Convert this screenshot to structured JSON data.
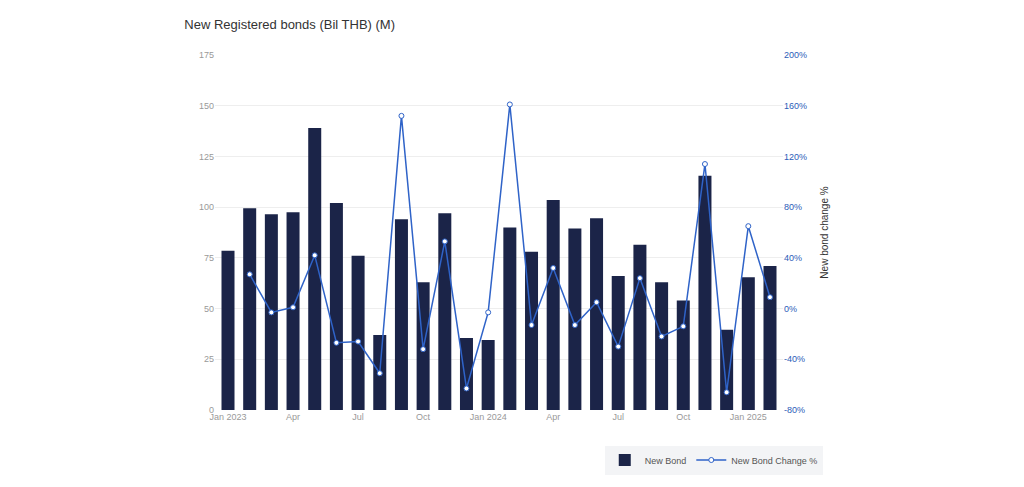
{
  "chart_data": {
    "type": "bar",
    "title": "New Registered bonds (Bil THB) (M)",
    "categories": [
      "Jan 2023",
      null,
      null,
      "Apr",
      null,
      null,
      "Jul",
      null,
      null,
      "Oct",
      null,
      null,
      "Jan 2024",
      null,
      null,
      "Apr",
      null,
      null,
      "Jul",
      null,
      null,
      "Oct",
      null,
      null,
      "Jan 2025",
      null
    ],
    "series": [
      {
        "name": "New Bond",
        "type": "bar",
        "color": "#1b2448",
        "values": [
          78.5,
          99.5,
          96.5,
          97.5,
          139,
          102,
          76,
          37,
          94,
          63,
          97,
          35.5,
          34.5,
          90,
          78,
          103.5,
          89.5,
          94.5,
          66,
          81.5,
          63,
          54,
          115.5,
          39.5,
          65.5,
          71
        ]
      },
      {
        "name": "New Bond Change %",
        "type": "line",
        "axis": "y2",
        "color": "#2f63c8",
        "marker": "circle",
        "values": [
          null,
          27,
          -3,
          1,
          42,
          -27,
          -26,
          -51,
          152,
          -32,
          53,
          -63,
          -3,
          161,
          -13,
          32,
          -13,
          5,
          -30,
          24,
          -22,
          -14,
          114,
          -66,
          65,
          9
        ]
      }
    ],
    "ylim": [
      0,
      175
    ],
    "yticks": [
      0,
      25,
      50,
      75,
      100,
      125,
      150,
      175
    ],
    "y2lim": [
      -80,
      200
    ],
    "y2ticks": [
      {
        "value": -80,
        "label": "-80%"
      },
      {
        "value": -40,
        "label": "-40%"
      },
      {
        "value": 0,
        "label": "0%"
      },
      {
        "value": 40,
        "label": "40%"
      },
      {
        "value": 80,
        "label": "80%"
      },
      {
        "value": 120,
        "label": "120%"
      },
      {
        "value": 160,
        "label": "160%"
      },
      {
        "value": 200,
        "label": "200%"
      }
    ],
    "y2label": "New bond change %",
    "grid": true,
    "legend": "bottom-right"
  }
}
